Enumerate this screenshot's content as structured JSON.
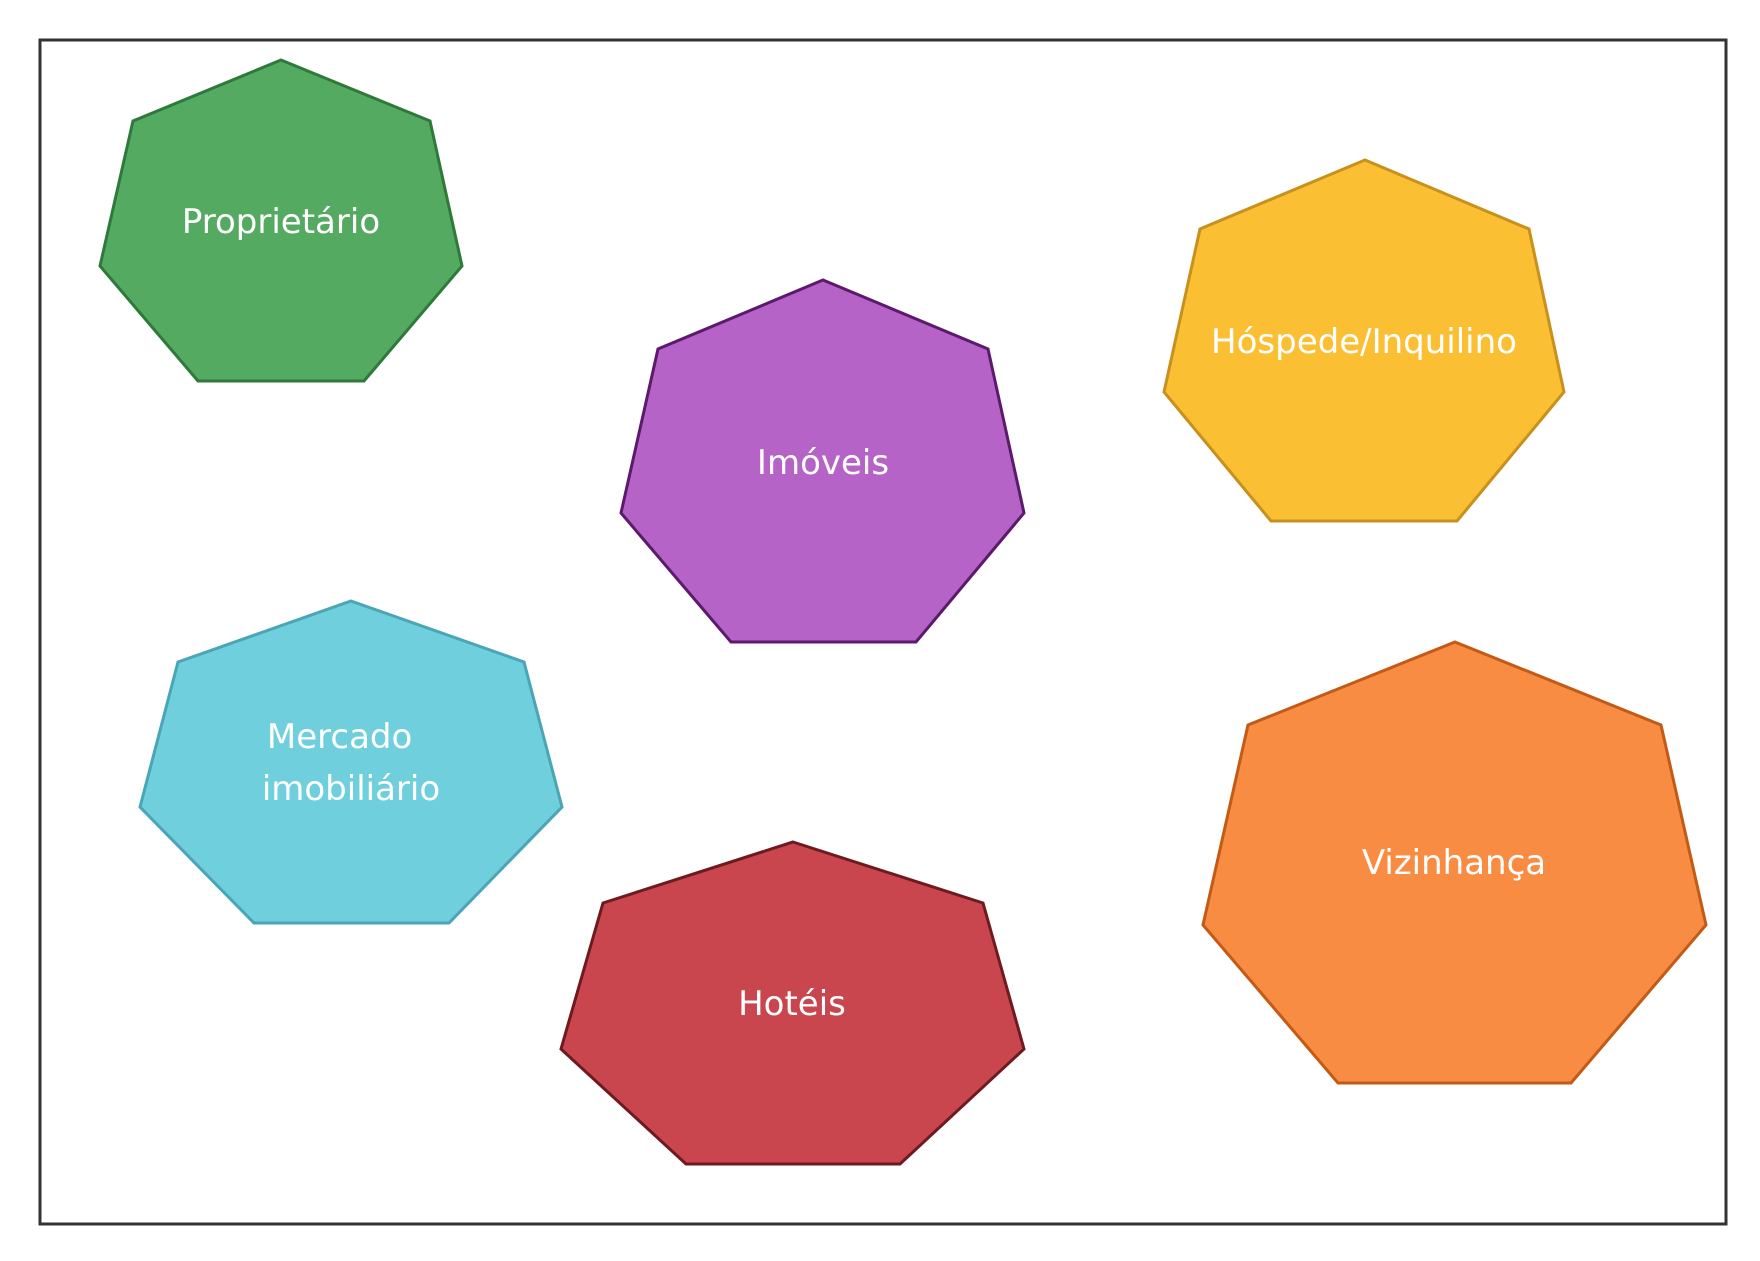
{
  "diagram": {
    "nodes": [
      {
        "id": "proprietario",
        "label_lines": [
          "Proprietário"
        ],
        "fill": "#55aa62",
        "stroke": "#2e7a3a"
      },
      {
        "id": "imoveis",
        "label_lines": [
          "Imóveis"
        ],
        "fill": "#b663c7",
        "stroke": "#5b1a6b"
      },
      {
        "id": "hospede-inquilino",
        "label_lines": [
          "Hóspede/Inquilino"
        ],
        "fill": "#fbbf33",
        "stroke": "#c8901c"
      },
      {
        "id": "mercado-imobiliario",
        "label_lines": [
          "Mercado",
          "imobiliário"
        ],
        "fill": "#6fcfdc",
        "stroke": "#4aa5b5"
      },
      {
        "id": "hoteis",
        "label_lines": [
          "Hotéis"
        ],
        "fill": "#c9464f",
        "stroke": "#6e1a1f"
      },
      {
        "id": "vizinhanca",
        "label_lines": [
          "Vizinhança"
        ],
        "fill": "#f98c43",
        "stroke": "#c35a15"
      }
    ]
  }
}
